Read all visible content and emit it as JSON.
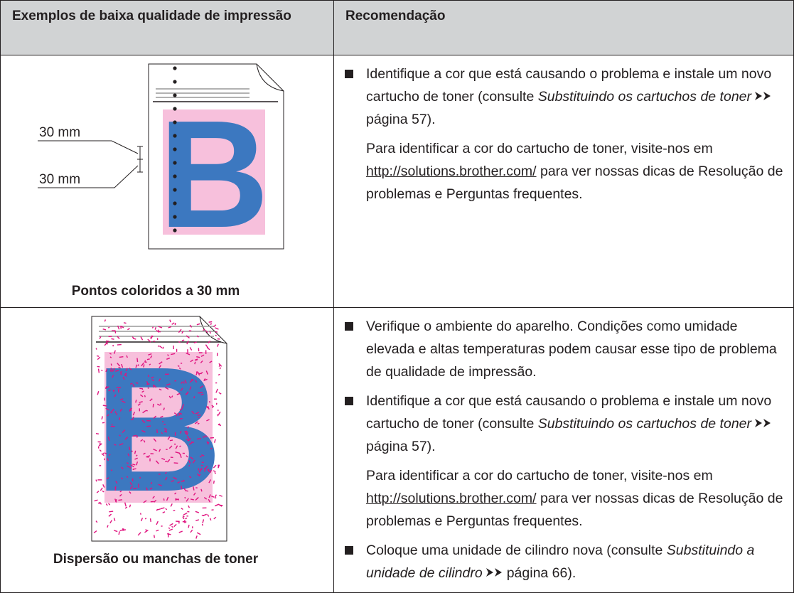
{
  "table": {
    "header": [
      "Exemplos de baixa qualidade de impressão",
      "Recomendação"
    ],
    "rows": [
      {
        "example": {
          "letter": "B",
          "labels": [
            "30 mm",
            "30 mm"
          ],
          "caption": "Pontos coloridos a 30 mm"
        },
        "recommendations": [
          {
            "bullet": true,
            "lead": "Identifique a cor que está causando o problema e instale um novo cartucho de toner (consulte",
            "ref": "Substituindo os cartuchos de toner",
            "page": "página 57)."
          },
          {
            "bullet": false,
            "lead": "Para identificar a cor do cartucho de toner, visite-nos em",
            "link": "http://solutions.brother.com/",
            "tail": "para ver nossas dicas de Resolução de problemas e Perguntas frequentes."
          }
        ]
      },
      {
        "example": {
          "letter": "B",
          "caption": "Dispersão ou manchas de toner"
        },
        "recommendations": [
          {
            "bullet": true,
            "text": "Verifique o ambiente do aparelho. Condições como umidade elevada e altas temperaturas podem causar esse tipo de problema de qualidade de impressão."
          },
          {
            "bullet": true,
            "lead": "Identifique a cor que está causando o problema e instale um novo cartucho de toner (consulte",
            "ref": "Substituindo os cartuchos de toner",
            "page": "página 57)."
          },
          {
            "bullet": false,
            "lead": "Para identificar a cor do cartucho de toner, visite-nos em",
            "link": "http://solutions.brother.com/",
            "tail": "para ver nossas dicas de Resolução de problemas e Perguntas frequentes."
          },
          {
            "bullet": true,
            "lead": "Coloque uma unidade de cilindro nova (consulte",
            "ref": "Substituindo a unidade de cilindro",
            "page": "página 66)."
          }
        ]
      }
    ]
  }
}
